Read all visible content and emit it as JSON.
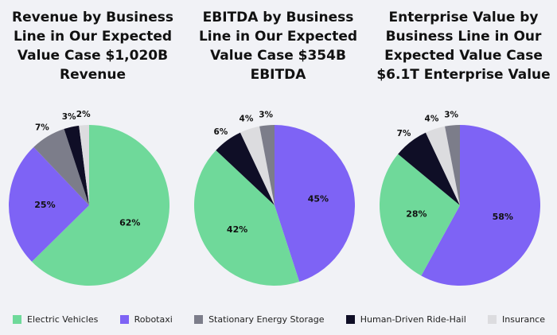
{
  "colors": {
    "electric_vehicles": "#6fd99a",
    "robotaxi": "#7e63f5",
    "stationary_energy_storage": "#7c7d8a",
    "human_driven_ride_hail": "#0f0e26",
    "insurance": "#dcdcdf"
  },
  "legend": [
    {
      "key": "electric_vehicles",
      "label": "Electric Vehicles"
    },
    {
      "key": "robotaxi",
      "label": "Robotaxi"
    },
    {
      "key": "stationary_energy_storage",
      "label": "Stationary Energy Storage"
    },
    {
      "key": "human_driven_ride_hail",
      "label": "Human-Driven Ride-Hail"
    },
    {
      "key": "insurance",
      "label": "Insurance"
    }
  ],
  "chart_data": [
    {
      "type": "pie",
      "title": "Revenue by Business Line in Our Expected Value Case $1,020B Revenue",
      "title_lines": [
        "Revenue by Business",
        "Line in Our Expected",
        "Value Case $1,020B",
        "Revenue"
      ],
      "slices": [
        {
          "key": "electric_vehicles",
          "label": "Electric Vehicles",
          "value": 62,
          "text": "62%"
        },
        {
          "key": "robotaxi",
          "label": "Robotaxi",
          "value": 25,
          "text": "25%"
        },
        {
          "key": "stationary_energy_storage",
          "label": "Stationary Energy Storage",
          "value": 7,
          "text": "7%"
        },
        {
          "key": "human_driven_ride_hail",
          "label": "Human-Driven Ride-Hail",
          "value": 3,
          "text": "3%"
        },
        {
          "key": "insurance",
          "label": "Insurance",
          "value": 2,
          "text": "2%"
        }
      ]
    },
    {
      "type": "pie",
      "title": "EBITDA by Business Line in Our Expected Value Case $354B EBITDA",
      "title_lines": [
        "EBITDA by Business",
        "Line in Our Expected",
        "Value Case $354B",
        "EBITDA"
      ],
      "slices": [
        {
          "key": "robotaxi",
          "label": "Robotaxi",
          "value": 45,
          "text": "45%"
        },
        {
          "key": "electric_vehicles",
          "label": "Electric Vehicles",
          "value": 42,
          "text": "42%"
        },
        {
          "key": "human_driven_ride_hail",
          "label": "Human-Driven Ride-Hail",
          "value": 6,
          "text": "6%"
        },
        {
          "key": "insurance",
          "label": "Insurance",
          "value": 4,
          "text": "4%"
        },
        {
          "key": "stationary_energy_storage",
          "label": "Stationary Energy Storage",
          "value": 3,
          "text": "3%"
        }
      ]
    },
    {
      "type": "pie",
      "title": "Enterprise Value by Business Line in Our Expected Value Case $6.1T Enterprise Value",
      "title_lines": [
        "Enterprise Value by",
        "Business Line in Our",
        "Expected Value Case",
        "$6.1T Enterprise Value"
      ],
      "slices": [
        {
          "key": "robotaxi",
          "label": "Robotaxi",
          "value": 58,
          "text": "58%"
        },
        {
          "key": "electric_vehicles",
          "label": "Electric Vehicles",
          "value": 28,
          "text": "28%"
        },
        {
          "key": "human_driven_ride_hail",
          "label": "Human-Driven Ride-Hail",
          "value": 7,
          "text": "7%"
        },
        {
          "key": "insurance",
          "label": "Insurance",
          "value": 4,
          "text": "4%"
        },
        {
          "key": "stationary_energy_storage",
          "label": "Stationary Energy Storage",
          "value": 3,
          "text": "3%"
        }
      ]
    }
  ]
}
